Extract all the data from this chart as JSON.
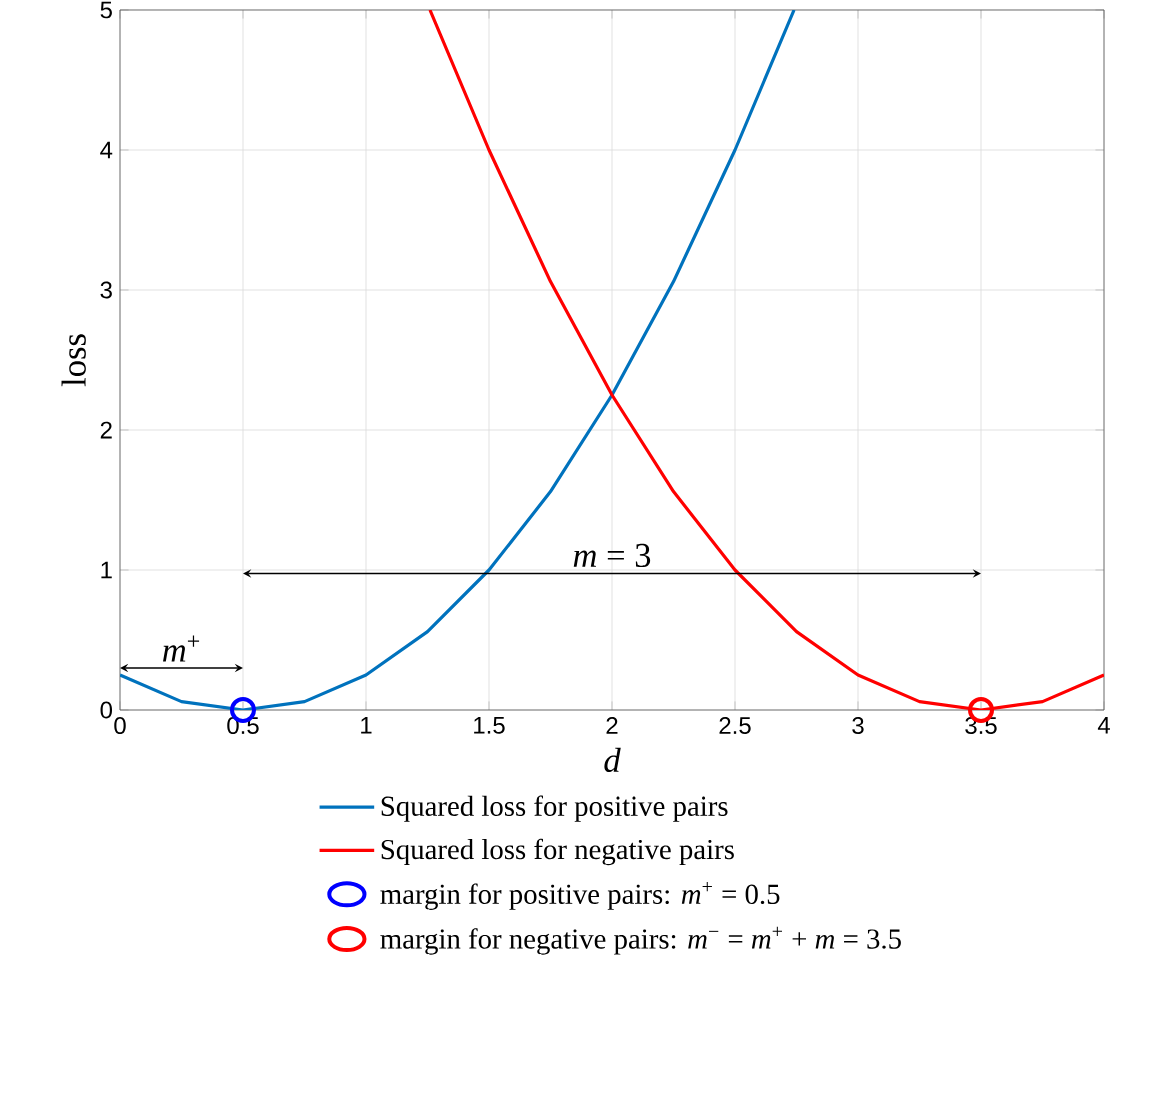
{
  "chart_data": {
    "type": "line",
    "xlabel": "d",
    "ylabel": "loss",
    "xlim": [
      0,
      4
    ],
    "ylim": [
      0,
      5
    ],
    "xticks": [
      0,
      0.5,
      1,
      1.5,
      2,
      2.5,
      3,
      3.5,
      4
    ],
    "yticks": [
      0,
      1,
      2,
      3,
      4,
      5
    ],
    "grid": true,
    "legend": "bottom",
    "series": [
      {
        "name": "Squared loss for positive pairs",
        "color": "#0072bd",
        "x": [
          0,
          0.25,
          0.5,
          0.75,
          1,
          1.25,
          1.5,
          1.75,
          2,
          2.25,
          2.5,
          2.74
        ],
        "values": [
          0.25,
          0.06,
          0,
          0.06,
          0.25,
          0.56,
          1,
          1.56,
          2.25,
          3.06,
          4,
          5
        ]
      },
      {
        "name": "Squared loss for negative pairs",
        "color": "#ff0000",
        "x": [
          1.26,
          1.5,
          1.75,
          2,
          2.25,
          2.5,
          2.75,
          3,
          3.25,
          3.5,
          3.75,
          4
        ],
        "values": [
          5,
          4,
          3.06,
          2.25,
          1.56,
          1,
          0.56,
          0.25,
          0.06,
          0,
          0.06,
          0.25
        ]
      },
      {
        "name": "margin for positive pairs: *m*$^{+}$ = 0.5",
        "type": "scatter",
        "marker": "circle",
        "color": "#0000ff",
        "x": [
          0.5
        ],
        "values": [
          0
        ]
      },
      {
        "name": "margin for negative pairs: *m*$^{−}$ = *m*$^{+}$ + *m* = 3.5",
        "type": "scatter",
        "marker": "circle",
        "color": "#ff0000",
        "x": [
          3.5
        ],
        "values": [
          0
        ]
      }
    ],
    "annotations": [
      "*m*$^{+}$",
      "*m* = 3"
    ]
  }
}
